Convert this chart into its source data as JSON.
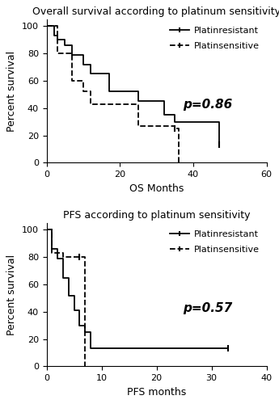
{
  "os_title": "Overall survival according to platinum sensitivity",
  "pfs_title": "PFS according to platinum sensitivity",
  "os_xlabel": "OS Months",
  "pfs_xlabel": "PFS months",
  "ylabel": "Percent survival",
  "os_pvalue": "p=0.86",
  "pfs_pvalue": "p=0.57",
  "legend_resistant": "Platinresistant",
  "legend_sensitive": "Platinsensitive",
  "os_xlim": [
    0,
    60
  ],
  "os_ylim": [
    0,
    105
  ],
  "os_xticks": [
    0,
    20,
    40,
    60
  ],
  "os_yticks": [
    0,
    20,
    40,
    60,
    80,
    100
  ],
  "pfs_xlim": [
    0,
    40
  ],
  "pfs_ylim": [
    0,
    105
  ],
  "pfs_xticks": [
    0,
    10,
    20,
    30,
    40
  ],
  "pfs_yticks": [
    0,
    20,
    40,
    60,
    80,
    100
  ],
  "os_resistant_x": [
    0,
    2,
    3,
    5,
    7,
    10,
    12,
    17,
    25,
    32,
    35,
    47
  ],
  "os_resistant_y": [
    100,
    93,
    90,
    86,
    79,
    72,
    65,
    52,
    45,
    35,
    30,
    13
  ],
  "os_sensitive_x": [
    0,
    1,
    3,
    4,
    7,
    10,
    12,
    25,
    35,
    36
  ],
  "os_sensitive_y": [
    100,
    100,
    80,
    80,
    60,
    52,
    43,
    27,
    25,
    0
  ],
  "pfs_resistant_x": [
    0,
    1,
    2,
    3,
    4,
    5,
    6,
    7,
    8,
    30,
    33
  ],
  "pfs_resistant_y": [
    100,
    86,
    79,
    65,
    52,
    41,
    30,
    25,
    13,
    13,
    13
  ],
  "pfs_sensitive_x": [
    0,
    1,
    2,
    3,
    6,
    7
  ],
  "pfs_sensitive_y": [
    100,
    83,
    83,
    80,
    80,
    0
  ],
  "bg_color": "#ffffff",
  "line_color": "#000000",
  "title_fontsize": 9,
  "label_fontsize": 9,
  "tick_fontsize": 8,
  "legend_fontsize": 8,
  "pvalue_fontsize": 11
}
